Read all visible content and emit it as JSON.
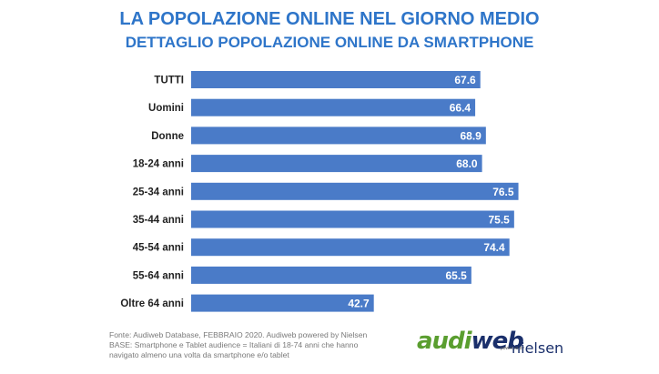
{
  "chart_data": {
    "type": "bar",
    "orientation": "horizontal",
    "title": "LA POPOLAZIONE ONLINE NEL GIORNO MEDIO",
    "subtitle": "DETTAGLIO POPOLAZIONE ONLINE DA SMARTPHONE",
    "categories": [
      "TUTTI",
      "Uomini",
      "Donne",
      "18-24 anni",
      "25-34 anni",
      "35-44 anni",
      "45-54 anni",
      "55-64 anni",
      "Oltre 64 anni"
    ],
    "values": [
      67.6,
      66.4,
      68.9,
      68.0,
      76.5,
      75.5,
      74.4,
      65.5,
      42.7
    ],
    "value_labels": [
      "67.6",
      "66.4",
      "68.9",
      "68.0",
      "76.5",
      "75.5",
      "74.4",
      "65.5",
      "42.7"
    ],
    "xlim": [
      0,
      80
    ],
    "grid": false,
    "bar_color": "#4a7bc8"
  },
  "footnote": {
    "line1": "Fonte: Audiweb Database, FEBBRAIO 2020. Audiweb powered by Nielsen",
    "line2": "BASE: Smartphone e Tablet audience = Italiani di 18-74 anni che hanno",
    "line3": "navigato almeno una volta da smartphone e/o tablet"
  },
  "logo": {
    "aud": "aud",
    "i": "i",
    "web": "web",
    "powered": "powered by",
    "nielsen": "nielsen"
  },
  "colors": {
    "title": "#2e75c9",
    "bar": "#4a7bc8",
    "logo_green": "#5a9e2f",
    "logo_navy": "#1a2f6b"
  }
}
